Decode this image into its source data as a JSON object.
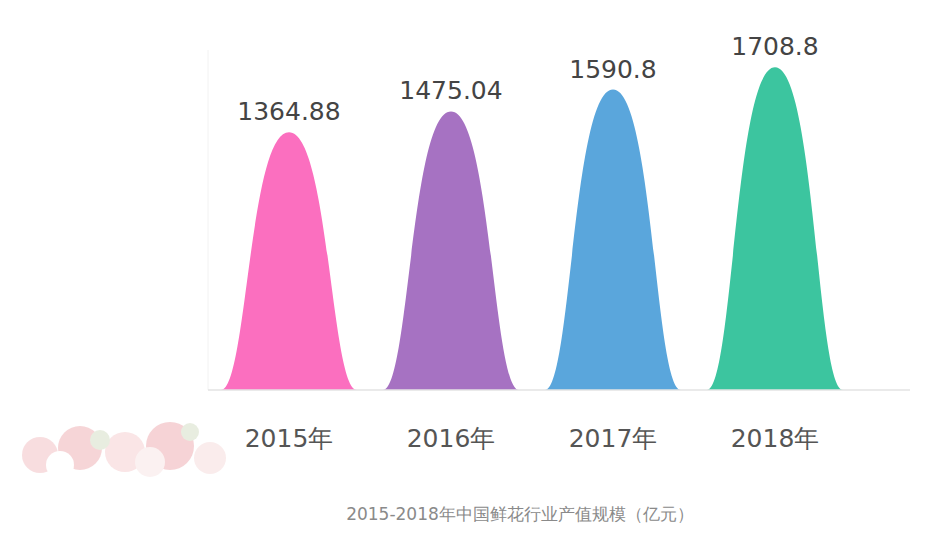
{
  "chart_data": {
    "type": "bar",
    "title": "2015-2018年中国鲜花行业产值规模（亿元）",
    "categories": [
      "2015年",
      "2016年",
      "2017年",
      "2018年"
    ],
    "values": [
      1364.88,
      1475.04,
      1590.8,
      1708.8
    ],
    "colors": [
      "#fb6fbf",
      "#a672c2",
      "#5aa6dc",
      "#3cc59f"
    ],
    "ylim": [
      0,
      1800
    ],
    "data_labels": true,
    "tick_labels": "x",
    "grid": false
  }
}
